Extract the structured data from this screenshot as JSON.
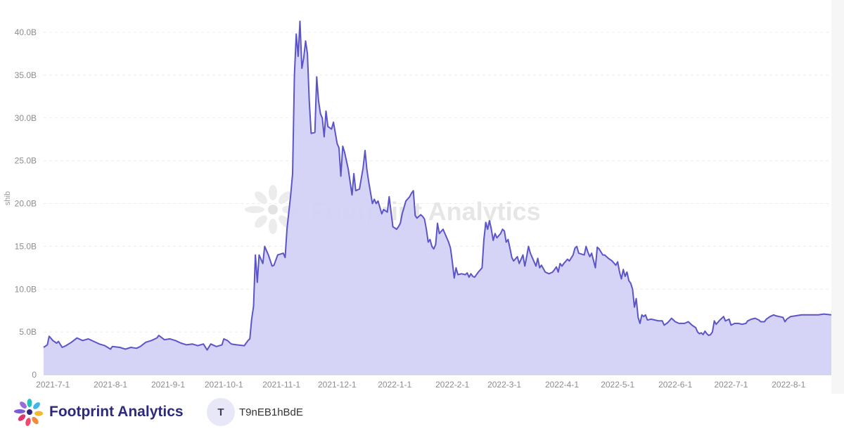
{
  "chart_data": {
    "type": "area",
    "ylabel": "shib",
    "xlabel": "",
    "yticks": [
      "0",
      "5.0B",
      "10.0B",
      "15.0B",
      "20.0B",
      "25.0B",
      "30.0B",
      "35.0B",
      "40.0B"
    ],
    "ylim": [
      0,
      40
    ],
    "xticks": [
      {
        "label": "2021-7-1",
        "day": 5
      },
      {
        "label": "2021-8-1",
        "day": 36
      },
      {
        "label": "2021-9-1",
        "day": 67
      },
      {
        "label": "2021-10-1",
        "day": 97
      },
      {
        "label": "2021-11-1",
        "day": 128
      },
      {
        "label": "2021-12-1",
        "day": 158
      },
      {
        "label": "2022-1-1",
        "day": 189
      },
      {
        "label": "2022-2-1",
        "day": 220
      },
      {
        "label": "2022-3-1",
        "day": 248
      },
      {
        "label": "2022-4-1",
        "day": 279
      },
      {
        "label": "2022-5-1",
        "day": 309
      },
      {
        "label": "2022-6-1",
        "day": 340
      },
      {
        "label": "2022-7-1",
        "day": 370
      },
      {
        "label": "2022-8-1",
        "day": 401
      }
    ],
    "xlim": [
      0,
      424
    ],
    "grid": true,
    "line_color": "#5b55c9",
    "fill_color": "#d4d2f6",
    "points": [
      [
        0,
        3.2
      ],
      [
        2,
        3.5
      ],
      [
        3,
        4.5
      ],
      [
        5,
        4.0
      ],
      [
        7,
        3.7
      ],
      [
        8,
        3.9
      ],
      [
        10,
        3.2
      ],
      [
        12,
        3.4
      ],
      [
        15,
        3.8
      ],
      [
        18,
        4.3
      ],
      [
        21,
        4.0
      ],
      [
        24,
        4.2
      ],
      [
        27,
        3.9
      ],
      [
        30,
        3.6
      ],
      [
        33,
        3.4
      ],
      [
        36,
        3.0
      ],
      [
        37,
        3.3
      ],
      [
        41,
        3.2
      ],
      [
        44,
        3.0
      ],
      [
        47,
        3.2
      ],
      [
        50,
        3.1
      ],
      [
        52,
        3.3
      ],
      [
        55,
        3.8
      ],
      [
        58,
        4.0
      ],
      [
        61,
        4.3
      ],
      [
        62,
        4.6
      ],
      [
        65,
        4.1
      ],
      [
        68,
        4.2
      ],
      [
        71,
        4.0
      ],
      [
        74,
        3.7
      ],
      [
        77,
        3.5
      ],
      [
        80,
        3.6
      ],
      [
        83,
        3.4
      ],
      [
        86,
        3.6
      ],
      [
        88,
        2.9
      ],
      [
        90,
        3.6
      ],
      [
        93,
        3.3
      ],
      [
        96,
        3.5
      ],
      [
        97,
        4.2
      ],
      [
        99,
        4.0
      ],
      [
        101,
        3.6
      ],
      [
        104,
        3.5
      ],
      [
        108,
        3.4
      ],
      [
        110,
        4.0
      ],
      [
        111,
        4.2
      ],
      [
        112,
        6.5
      ],
      [
        113,
        8.0
      ],
      [
        114,
        14.0
      ],
      [
        115,
        10.8
      ],
      [
        116,
        14.0
      ],
      [
        118,
        13.0
      ],
      [
        119,
        15.0
      ],
      [
        121,
        14.0
      ],
      [
        123,
        12.7
      ],
      [
        124,
        12.8
      ],
      [
        126,
        14.0
      ],
      [
        129,
        14.2
      ],
      [
        130,
        13.7
      ],
      [
        131,
        17.0
      ],
      [
        133,
        21.0
      ],
      [
        134,
        23.5
      ],
      [
        135,
        35.0
      ],
      [
        136,
        39.8
      ],
      [
        137,
        37.2
      ],
      [
        138,
        41.3
      ],
      [
        139,
        35.8
      ],
      [
        140,
        37.0
      ],
      [
        141,
        39.0
      ],
      [
        142,
        37.5
      ],
      [
        143,
        32.0
      ],
      [
        144,
        28.2
      ],
      [
        146,
        28.3
      ],
      [
        147,
        34.8
      ],
      [
        148,
        32.0
      ],
      [
        149,
        30.5
      ],
      [
        150,
        30.0
      ],
      [
        151,
        27.8
      ],
      [
        152,
        30.8
      ],
      [
        153,
        29.0
      ],
      [
        155,
        28.7
      ],
      [
        156,
        29.5
      ],
      [
        158,
        27.0
      ],
      [
        159,
        26.5
      ],
      [
        160,
        23.2
      ],
      [
        161,
        26.7
      ],
      [
        162,
        26.0
      ],
      [
        164,
        24.0
      ],
      [
        166,
        21.0
      ],
      [
        167,
        23.5
      ],
      [
        168,
        21.5
      ],
      [
        170,
        21.7
      ],
      [
        172,
        24.2
      ],
      [
        173,
        26.2
      ],
      [
        174,
        24.0
      ],
      [
        175,
        22.5
      ],
      [
        177,
        20.0
      ],
      [
        178,
        20.5
      ],
      [
        179,
        20.0
      ],
      [
        180,
        20.3
      ],
      [
        182,
        18.8
      ],
      [
        183,
        19.3
      ],
      [
        185,
        19.0
      ],
      [
        186,
        20.8
      ],
      [
        188,
        17.3
      ],
      [
        190,
        17.0
      ],
      [
        191,
        17.3
      ],
      [
        192,
        17.7
      ],
      [
        193,
        18.8
      ],
      [
        195,
        20.3
      ],
      [
        197,
        20.8
      ],
      [
        198,
        21.2
      ],
      [
        199,
        21.5
      ],
      [
        200,
        18.6
      ],
      [
        201,
        18.3
      ],
      [
        203,
        18.7
      ],
      [
        204,
        18.5
      ],
      [
        205,
        18.2
      ],
      [
        206,
        17.0
      ],
      [
        207,
        15.5
      ],
      [
        208,
        15.8
      ],
      [
        209,
        15.0
      ],
      [
        210,
        14.7
      ],
      [
        211,
        15.2
      ],
      [
        212,
        17.7
      ],
      [
        213,
        16.5
      ],
      [
        215,
        17.0
      ],
      [
        216,
        16.5
      ],
      [
        218,
        15.5
      ],
      [
        219,
        14.8
      ],
      [
        220,
        13.2
      ],
      [
        221,
        11.3
      ],
      [
        222,
        12.5
      ],
      [
        223,
        11.7
      ],
      [
        225,
        11.8
      ],
      [
        227,
        11.7
      ],
      [
        228,
        11.9
      ],
      [
        229,
        11.4
      ],
      [
        230,
        11.8
      ],
      [
        231,
        11.5
      ],
      [
        232,
        11.4
      ],
      [
        234,
        12.0
      ],
      [
        236,
        12.5
      ],
      [
        237,
        15.8
      ],
      [
        238,
        17.8
      ],
      [
        239,
        17.0
      ],
      [
        240,
        18.0
      ],
      [
        241,
        17.0
      ],
      [
        242,
        15.7
      ],
      [
        243,
        16.5
      ],
      [
        244,
        16.0
      ],
      [
        246,
        16.5
      ],
      [
        247,
        17.0
      ],
      [
        248,
        16.8
      ],
      [
        249,
        15.5
      ],
      [
        250,
        15.8
      ],
      [
        251,
        14.8
      ],
      [
        252,
        13.7
      ],
      [
        253,
        13.3
      ],
      [
        255,
        13.8
      ],
      [
        256,
        13.0
      ],
      [
        257,
        13.5
      ],
      [
        258,
        14.0
      ],
      [
        259,
        12.7
      ],
      [
        260,
        13.8
      ],
      [
        261,
        15.0
      ],
      [
        262,
        14.2
      ],
      [
        264,
        13.2
      ],
      [
        265,
        12.7
      ],
      [
        266,
        13.6
      ],
      [
        267,
        12.5
      ],
      [
        268,
        12.8
      ],
      [
        270,
        12.0
      ],
      [
        272,
        11.8
      ],
      [
        274,
        12.0
      ],
      [
        276,
        12.6
      ],
      [
        277,
        12.0
      ],
      [
        278,
        13.0
      ],
      [
        279,
        12.7
      ],
      [
        280,
        13.0
      ],
      [
        282,
        13.5
      ],
      [
        283,
        13.3
      ],
      [
        285,
        14.0
      ],
      [
        286,
        14.8
      ],
      [
        287,
        15.0
      ],
      [
        288,
        14.2
      ],
      [
        291,
        14.0
      ],
      [
        292,
        15.0
      ],
      [
        293,
        14.3
      ],
      [
        294,
        13.8
      ],
      [
        295,
        14.2
      ],
      [
        297,
        12.5
      ],
      [
        298,
        14.9
      ],
      [
        299,
        14.7
      ],
      [
        301,
        14.0
      ],
      [
        302,
        14.0
      ],
      [
        304,
        13.6
      ],
      [
        306,
        13.3
      ],
      [
        308,
        12.8
      ],
      [
        309,
        13.2
      ],
      [
        310,
        12.0
      ],
      [
        311,
        11.2
      ],
      [
        312,
        12.3
      ],
      [
        313,
        11.5
      ],
      [
        314,
        12.0
      ],
      [
        315,
        11.0
      ],
      [
        316,
        10.7
      ],
      [
        317,
        10.0
      ],
      [
        318,
        7.9
      ],
      [
        319,
        8.9
      ],
      [
        320,
        6.7
      ],
      [
        321,
        6.0
      ],
      [
        322,
        7.0
      ],
      [
        323,
        6.8
      ],
      [
        324,
        7.0
      ],
      [
        325,
        6.4
      ],
      [
        327,
        6.5
      ],
      [
        329,
        6.4
      ],
      [
        331,
        6.3
      ],
      [
        333,
        6.3
      ],
      [
        334,
        5.8
      ],
      [
        336,
        6.1
      ],
      [
        338,
        6.6
      ],
      [
        340,
        6.2
      ],
      [
        342,
        6.0
      ],
      [
        345,
        6.0
      ],
      [
        347,
        6.2
      ],
      [
        349,
        5.8
      ],
      [
        351,
        5.5
      ],
      [
        352,
        5.0
      ],
      [
        353,
        4.8
      ],
      [
        354,
        4.9
      ],
      [
        355,
        4.7
      ],
      [
        356,
        5.1
      ],
      [
        357,
        4.8
      ],
      [
        358,
        4.6
      ],
      [
        359,
        4.7
      ],
      [
        360,
        5.0
      ],
      [
        361,
        6.3
      ],
      [
        362,
        5.9
      ],
      [
        364,
        6.4
      ],
      [
        366,
        6.8
      ],
      [
        367,
        6.3
      ],
      [
        369,
        6.5
      ],
      [
        370,
        5.8
      ],
      [
        372,
        6.0
      ],
      [
        374,
        6.0
      ],
      [
        376,
        5.9
      ],
      [
        378,
        6.0
      ],
      [
        379,
        6.3
      ],
      [
        381,
        6.5
      ],
      [
        383,
        6.6
      ],
      [
        385,
        6.4
      ],
      [
        386,
        6.2
      ],
      [
        388,
        6.2
      ],
      [
        389,
        6.5
      ],
      [
        391,
        6.8
      ],
      [
        393,
        7.0
      ],
      [
        394,
        6.9
      ],
      [
        396,
        6.8
      ],
      [
        398,
        6.7
      ],
      [
        399,
        6.2
      ],
      [
        400,
        6.5
      ],
      [
        402,
        6.8
      ],
      [
        405,
        6.9
      ],
      [
        408,
        7.0
      ],
      [
        411,
        7.0
      ],
      [
        414,
        7.0
      ],
      [
        417,
        7.0
      ],
      [
        420,
        7.1
      ],
      [
        424,
        7.0
      ]
    ]
  },
  "watermark": {
    "text": "Footprint Analytics"
  },
  "footer": {
    "brand_name": "Footprint Analytics",
    "avatar_initial": "T",
    "username": "T9nEB1hBdE"
  }
}
